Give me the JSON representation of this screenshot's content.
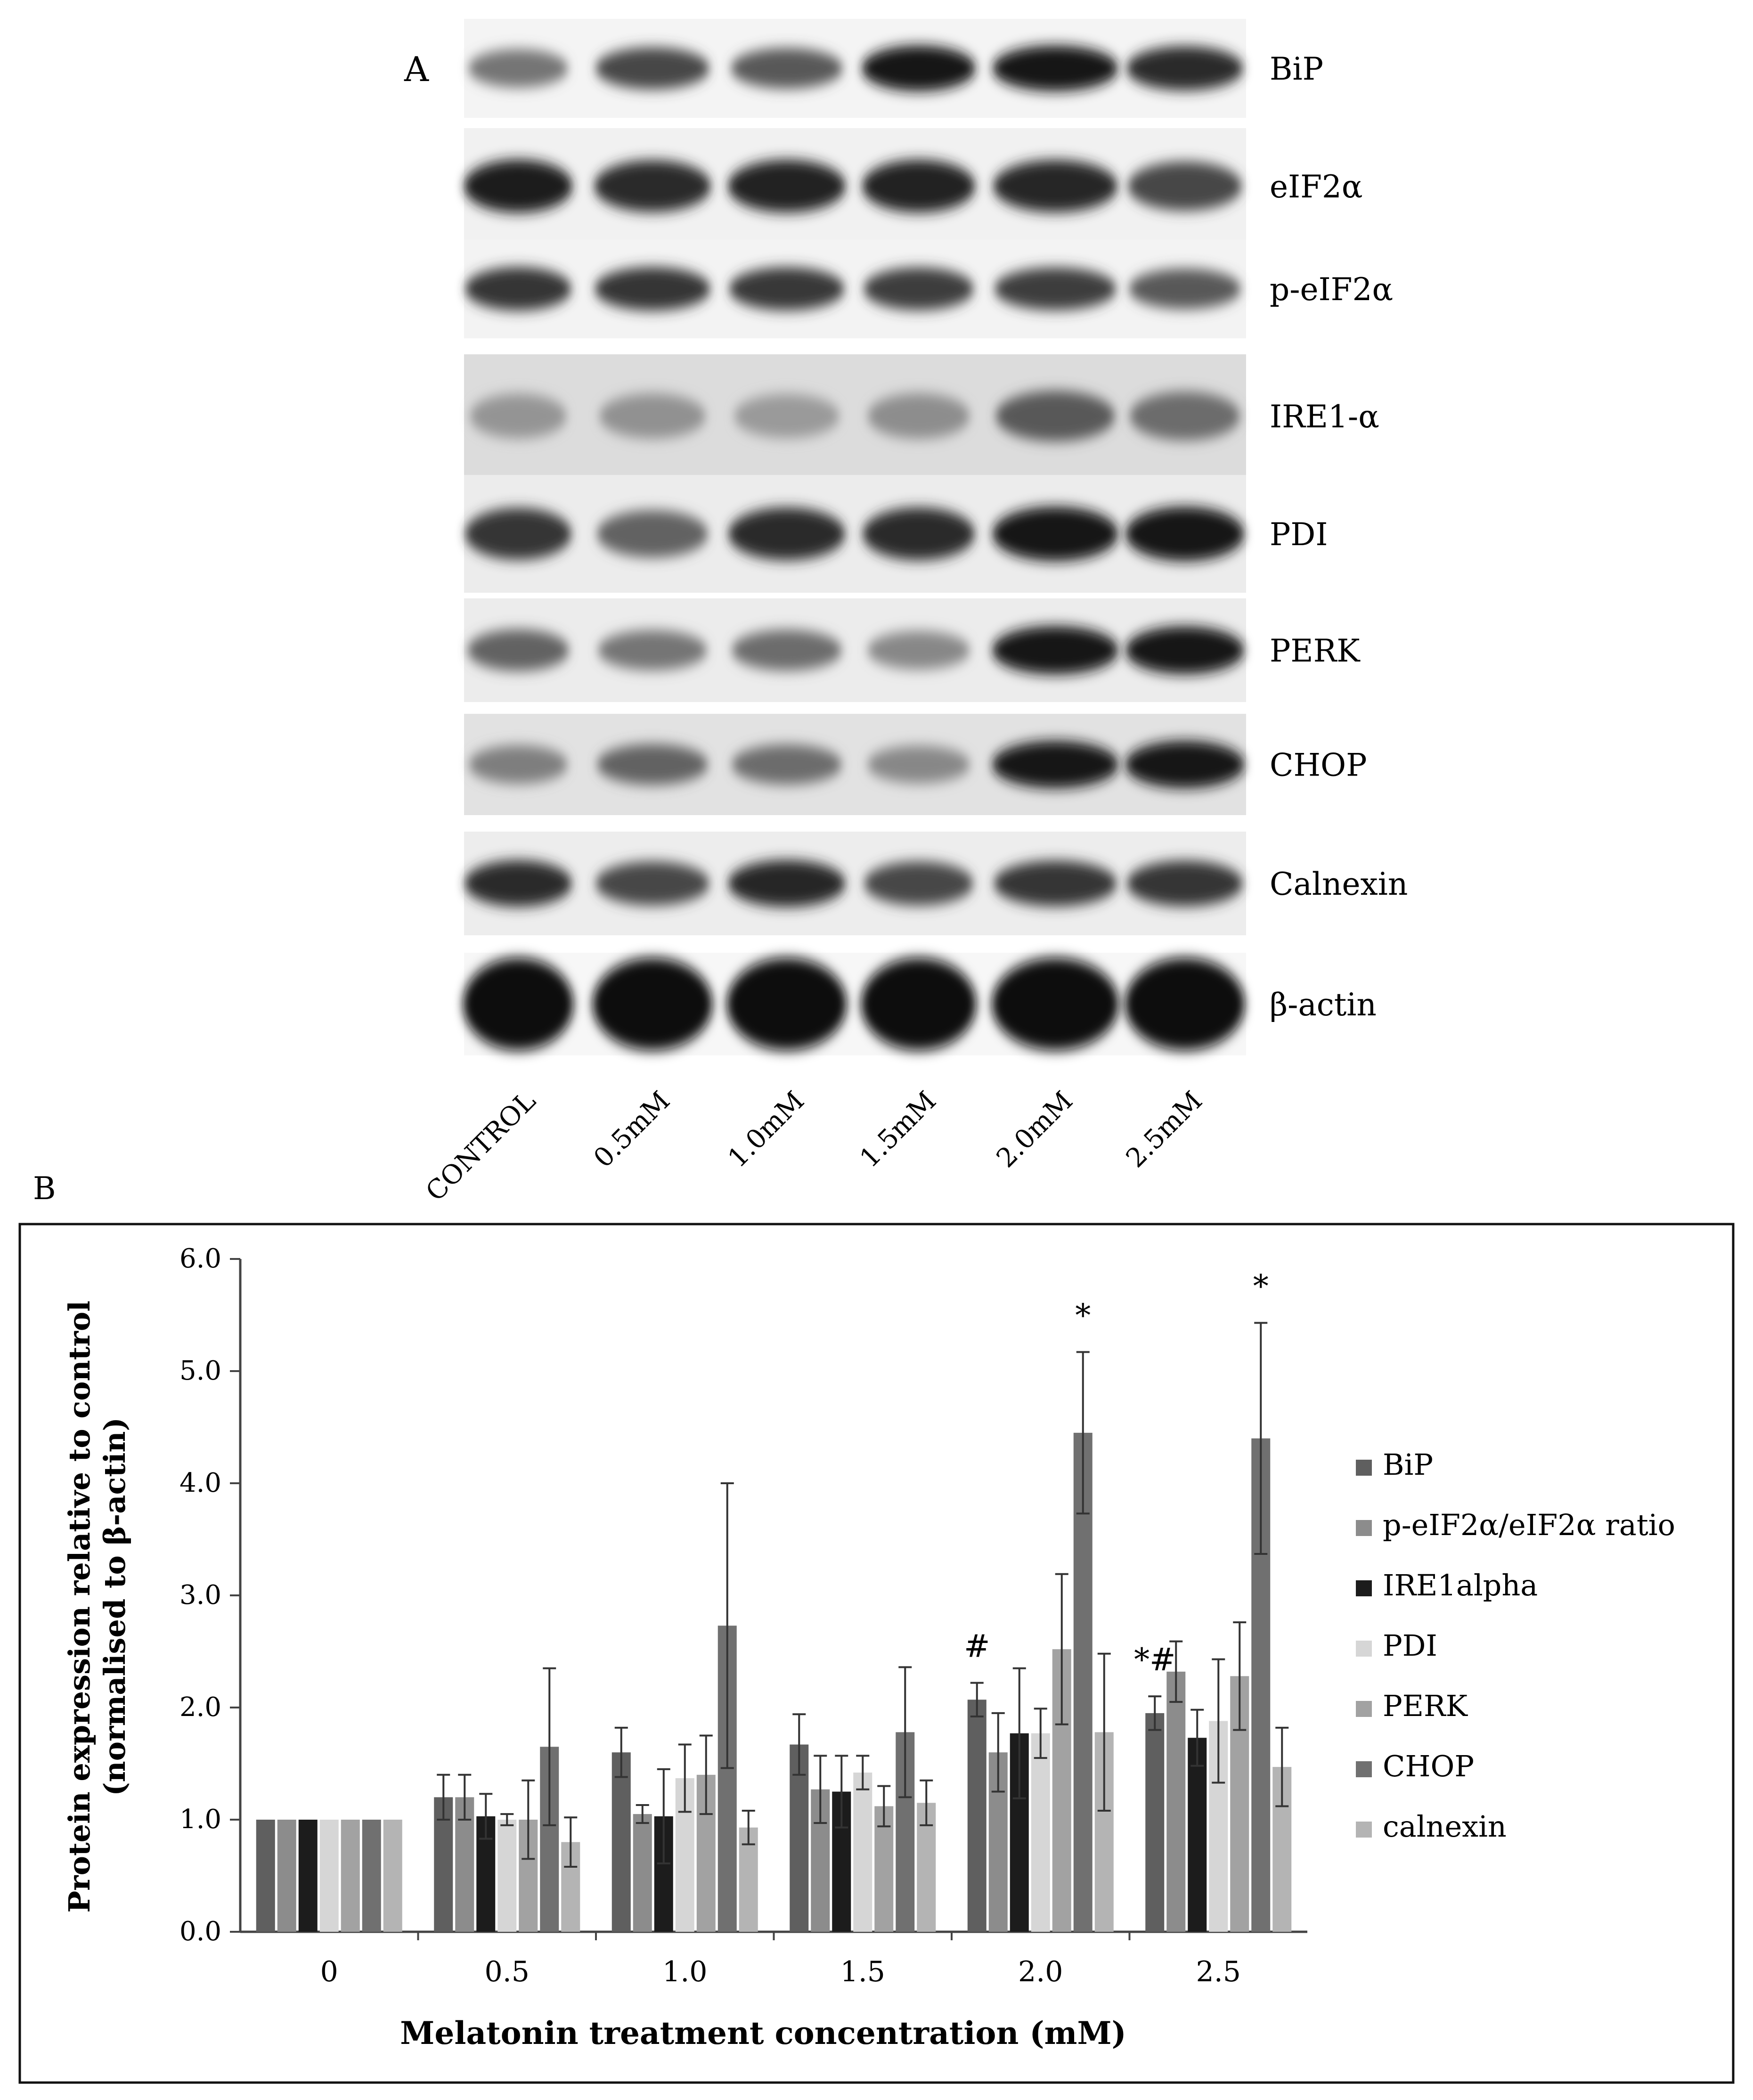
{
  "panel_a": {
    "label": "A",
    "blots": [
      {
        "name": "BiP",
        "intensity": [
          0.45,
          0.7,
          0.6,
          0.95,
          0.95,
          0.85
        ]
      },
      {
        "name": "eIF2α",
        "intensity": [
          0.92,
          0.85,
          0.9,
          0.9,
          0.88,
          0.7
        ]
      },
      {
        "name": "p-eIF2α",
        "intensity": [
          0.8,
          0.8,
          0.78,
          0.75,
          0.75,
          0.6
        ]
      },
      {
        "name": "IRE1-α",
        "intensity": [
          0.28,
          0.3,
          0.25,
          0.32,
          0.6,
          0.5
        ]
      },
      {
        "name": "PDI",
        "intensity": [
          0.8,
          0.55,
          0.85,
          0.85,
          0.95,
          0.95
        ]
      },
      {
        "name": "PERK",
        "intensity": [
          0.55,
          0.45,
          0.5,
          0.35,
          0.98,
          0.95
        ]
      },
      {
        "name": "CHOP",
        "intensity": [
          0.4,
          0.55,
          0.5,
          0.35,
          0.98,
          0.98
        ]
      },
      {
        "name": "Calnexin",
        "intensity": [
          0.85,
          0.7,
          0.88,
          0.7,
          0.8,
          0.8
        ]
      },
      {
        "name": "β-actin",
        "intensity": [
          1.0,
          1.0,
          1.0,
          1.0,
          1.0,
          1.0
        ]
      }
    ],
    "lanes": [
      "CONTROL",
      "0.5mM",
      "1.0mM",
      "1.5mM",
      "2.0mM",
      "2.5mM"
    ]
  },
  "panel_b": {
    "label": "B"
  },
  "chart_data": {
    "type": "bar",
    "title": "",
    "xlabel": "Melatonin treatment concentration (mM)",
    "ylabel_line1": "Protein expression relative to control",
    "ylabel_line2": "(normalised to β-actin)",
    "categories": [
      "0",
      "0.5",
      "1.0",
      "1.5",
      "2.0",
      "2.5"
    ],
    "ylim": [
      0,
      6
    ],
    "yticks": [
      "0.0",
      "1.0",
      "2.0",
      "3.0",
      "4.0",
      "5.0",
      "6.0"
    ],
    "grid": false,
    "legend_position": "right",
    "series": [
      {
        "name": "BiP",
        "color": "#5f5f5f",
        "values": [
          1.0,
          1.2,
          1.6,
          1.67,
          2.07,
          1.95
        ],
        "errors": [
          0,
          0.2,
          0.22,
          0.27,
          0.15,
          0.15
        ]
      },
      {
        "name": "p-eIF2α/eIF2α ratio",
        "color": "#8c8c8c",
        "values": [
          1.0,
          1.2,
          1.05,
          1.27,
          1.6,
          2.32
        ],
        "errors": [
          0,
          0.2,
          0.08,
          0.3,
          0.35,
          0.27
        ]
      },
      {
        "name": "IRE1alpha",
        "color": "#1c1c1c",
        "values": [
          1.0,
          1.03,
          1.03,
          1.25,
          1.77,
          1.73
        ],
        "errors": [
          0,
          0.2,
          0.42,
          0.32,
          0.58,
          0.25
        ]
      },
      {
        "name": "PDI",
        "color": "#d6d6d6",
        "values": [
          1.0,
          1.0,
          1.37,
          1.42,
          1.77,
          1.88
        ],
        "errors": [
          0,
          0.05,
          0.3,
          0.15,
          0.22,
          0.55
        ]
      },
      {
        "name": "PERK",
        "color": "#a2a2a2",
        "values": [
          1.0,
          1.0,
          1.4,
          1.12,
          2.52,
          2.28
        ],
        "errors": [
          0,
          0.35,
          0.35,
          0.18,
          0.67,
          0.48
        ]
      },
      {
        "name": "CHOP",
        "color": "#707070",
        "values": [
          1.0,
          1.65,
          2.73,
          1.78,
          4.45,
          4.4
        ],
        "errors": [
          0,
          0.7,
          1.27,
          0.58,
          0.72,
          1.03
        ]
      },
      {
        "name": "calnexin",
        "color": "#b4b4b4",
        "values": [
          1.0,
          0.8,
          0.93,
          1.15,
          1.78,
          1.47
        ],
        "errors": [
          0,
          0.22,
          0.15,
          0.2,
          0.7,
          0.35
        ]
      }
    ],
    "annotations": [
      {
        "category": "2.0",
        "series": "BiP",
        "text": "#"
      },
      {
        "category": "2.0",
        "series": "CHOP",
        "text": "*"
      },
      {
        "category": "2.5",
        "series": "BiP",
        "text": "*#"
      },
      {
        "category": "2.5",
        "series": "CHOP",
        "text": "*"
      }
    ]
  }
}
